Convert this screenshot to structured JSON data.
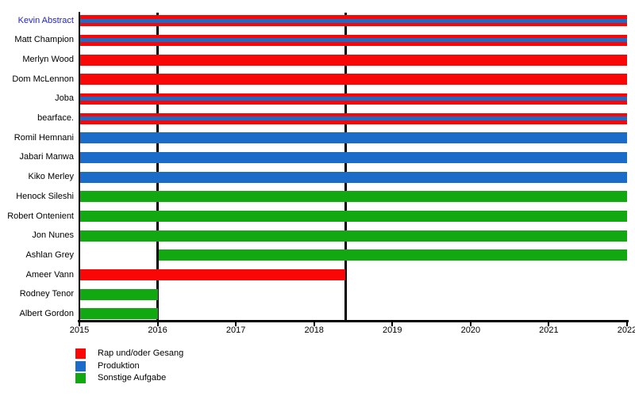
{
  "page": {
    "background": "#ffffff"
  },
  "chart_data": {
    "type": "bar",
    "subtype": "timeline_gantt",
    "title": "",
    "xlabel": "",
    "ylabel": "",
    "xlim": [
      2015,
      2022
    ],
    "x_ticks": [
      "2015",
      "2016",
      "2017",
      "2018",
      "2019",
      "2020",
      "2021",
      "2022"
    ],
    "grid": false,
    "legend_position": "bottom-left",
    "milestone_lines": [
      2016,
      2018.4
    ],
    "colors": {
      "rap": "#f90606",
      "produktion": "#1a6cc8",
      "sonstige": "#12a812",
      "axis": "#000000",
      "text": "#000000",
      "link_text": "#2222cc"
    },
    "legend": [
      {
        "key": "rap",
        "label": "Rap und/oder Gesang"
      },
      {
        "key": "produktion",
        "label": "Produktion"
      },
      {
        "key": "sonstige",
        "label": "Sonstige Aufgabe"
      }
    ],
    "rows": [
      {
        "name": "Kevin Abstract",
        "link": true,
        "start": 2015,
        "end": 2022,
        "roles": [
          "rap",
          "produktion"
        ]
      },
      {
        "name": "Matt Champion",
        "link": false,
        "start": 2015,
        "end": 2022,
        "roles": [
          "rap",
          "produktion"
        ]
      },
      {
        "name": "Merlyn Wood",
        "link": false,
        "start": 2015,
        "end": 2022,
        "roles": [
          "rap"
        ]
      },
      {
        "name": "Dom McLennon",
        "link": false,
        "start": 2015,
        "end": 2022,
        "roles": [
          "rap"
        ]
      },
      {
        "name": "Joba",
        "link": false,
        "start": 2015,
        "end": 2022,
        "roles": [
          "rap",
          "produktion"
        ]
      },
      {
        "name": "bearface.",
        "link": false,
        "start": 2015,
        "end": 2022,
        "roles": [
          "rap",
          "produktion"
        ]
      },
      {
        "name": "Romil Hemnani",
        "link": false,
        "start": 2015,
        "end": 2022,
        "roles": [
          "produktion"
        ]
      },
      {
        "name": "Jabari Manwa",
        "link": false,
        "start": 2015,
        "end": 2022,
        "roles": [
          "produktion"
        ]
      },
      {
        "name": "Kiko Merley",
        "link": false,
        "start": 2015,
        "end": 2022,
        "roles": [
          "produktion"
        ]
      },
      {
        "name": "Henock Sileshi",
        "link": false,
        "start": 2015,
        "end": 2022,
        "roles": [
          "sonstige"
        ]
      },
      {
        "name": "Robert Ontenient",
        "link": false,
        "start": 2015,
        "end": 2022,
        "roles": [
          "sonstige"
        ]
      },
      {
        "name": "Jon Nunes",
        "link": false,
        "start": 2015,
        "end": 2022,
        "roles": [
          "sonstige"
        ]
      },
      {
        "name": "Ashlan Grey",
        "link": false,
        "start": 2016,
        "end": 2022,
        "roles": [
          "sonstige"
        ]
      },
      {
        "name": "Ameer Vann",
        "link": false,
        "start": 2015,
        "end": 2018.4,
        "roles": [
          "rap"
        ]
      },
      {
        "name": "Rodney Tenor",
        "link": false,
        "start": 2015,
        "end": 2016,
        "roles": [
          "sonstige"
        ]
      },
      {
        "name": "Albert Gordon",
        "link": false,
        "start": 2015,
        "end": 2016,
        "roles": [
          "sonstige"
        ]
      }
    ]
  }
}
